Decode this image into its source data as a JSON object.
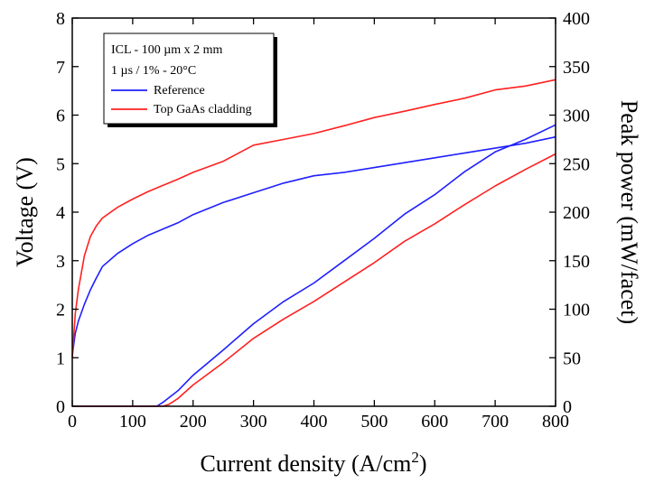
{
  "chart_data": {
    "type": "line",
    "title": "",
    "xlabel": "Current density (A/cm",
    "xlabel_superscript": "2",
    "xlabel_suffix": ")",
    "ylabel_left": "Voltage (V)",
    "ylabel_right": "Peak power (mW/facet)",
    "xlim": [
      0,
      800
    ],
    "ylim_left": [
      0,
      8
    ],
    "ylim_right": [
      0,
      400
    ],
    "x_ticks": [
      0,
      100,
      200,
      300,
      400,
      500,
      600,
      700,
      800
    ],
    "y_left_ticks": [
      0,
      1,
      2,
      3,
      4,
      5,
      6,
      7,
      8
    ],
    "y_right_ticks": [
      0,
      50,
      100,
      150,
      200,
      250,
      300,
      350,
      400
    ],
    "grid": false,
    "legend": {
      "placement": "top-left",
      "header": [
        "ICL - 100 µm x 2 mm",
        "1 µs / 1% - 20°C"
      ],
      "entries": [
        {
          "label": "Reference",
          "color": "#1f1fff"
        },
        {
          "label": "Top GaAs cladding",
          "color": "#ff2020"
        }
      ]
    },
    "series": [
      {
        "name": "Reference",
        "quantity": "voltage",
        "axis": "left",
        "color": "#1f1fff",
        "x": [
          0,
          5,
          10,
          20,
          30,
          40,
          50,
          75,
          100,
          125,
          150,
          175,
          200,
          250,
          300,
          350,
          400,
          450,
          500,
          550,
          600,
          650,
          700,
          750,
          800
        ],
        "y": [
          1.05,
          1.5,
          1.75,
          2.1,
          2.4,
          2.65,
          2.88,
          3.15,
          3.35,
          3.52,
          3.65,
          3.78,
          3.95,
          4.2,
          4.4,
          4.6,
          4.75,
          4.82,
          4.92,
          5.02,
          5.12,
          5.22,
          5.32,
          5.42,
          5.55
        ]
      },
      {
        "name": "Top GaAs cladding",
        "quantity": "voltage",
        "axis": "left",
        "color": "#ff2020",
        "x": [
          0,
          5,
          10,
          20,
          30,
          40,
          50,
          75,
          100,
          125,
          150,
          175,
          200,
          250,
          300,
          350,
          400,
          450,
          500,
          550,
          600,
          650,
          700,
          750,
          800
        ],
        "y": [
          1.0,
          1.9,
          2.4,
          3.1,
          3.5,
          3.72,
          3.88,
          4.1,
          4.27,
          4.42,
          4.55,
          4.68,
          4.82,
          5.05,
          5.38,
          5.5,
          5.62,
          5.78,
          5.95,
          6.08,
          6.22,
          6.35,
          6.52,
          6.6,
          6.73
        ]
      },
      {
        "name": "Reference",
        "quantity": "peak power",
        "axis": "right",
        "color": "#1f1fff",
        "x": [
          0,
          50,
          100,
          140,
          150,
          175,
          200,
          250,
          300,
          350,
          400,
          450,
          500,
          550,
          600,
          650,
          700,
          750,
          800
        ],
        "y": [
          0,
          0,
          0,
          0,
          4,
          16,
          32,
          58,
          85,
          108,
          127,
          150,
          173,
          198,
          218,
          242,
          262,
          275,
          290
        ]
      },
      {
        "name": "Top GaAs cladding",
        "quantity": "peak power",
        "axis": "right",
        "color": "#ff2020",
        "x": [
          0,
          50,
          100,
          150,
          160,
          175,
          200,
          250,
          300,
          350,
          400,
          450,
          500,
          550,
          600,
          650,
          700,
          750,
          800
        ],
        "y": [
          0,
          0,
          0,
          0,
          2,
          8,
          22,
          45,
          70,
          90,
          108,
          128,
          148,
          170,
          188,
          208,
          227,
          244,
          260
        ]
      }
    ]
  }
}
